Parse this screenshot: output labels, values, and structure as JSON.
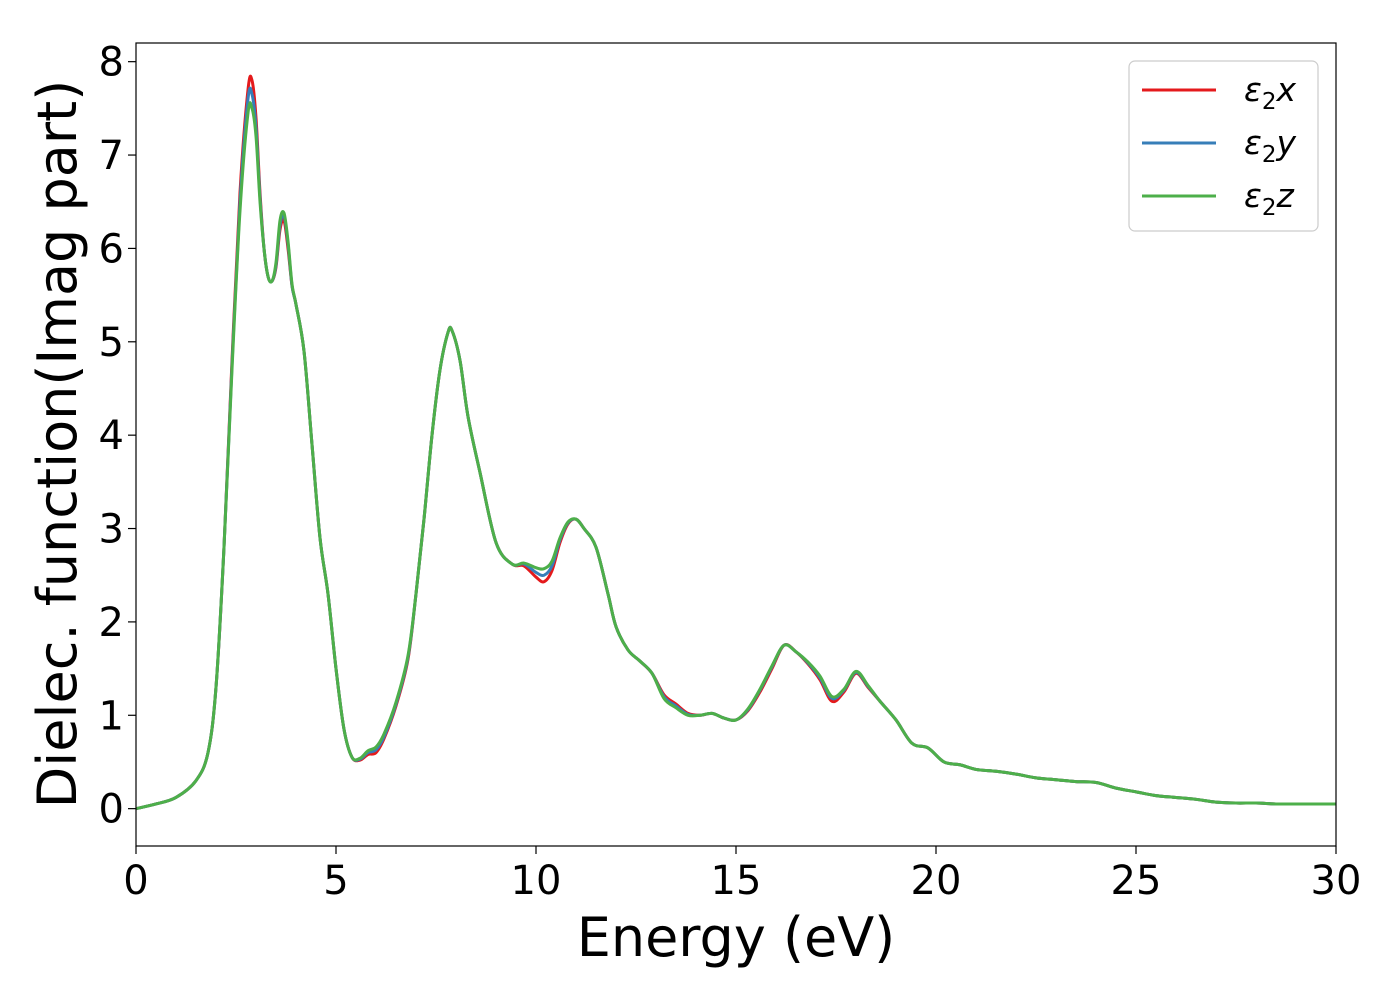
{
  "chart_data": {
    "type": "line",
    "title": "",
    "xlabel": "Energy (eV)",
    "ylabel": "Dielec. function(Imag part)",
    "xlim": [
      0,
      30
    ],
    "ylim": [
      -0.4,
      8.2
    ],
    "xticks": [
      0,
      5,
      10,
      15,
      20,
      25,
      30
    ],
    "yticks": [
      0,
      1,
      2,
      3,
      4,
      5,
      6,
      7,
      8
    ],
    "grid": false,
    "legend_position": "top-right",
    "series": [
      {
        "name": "ε2x",
        "legend": {
          "symbol": "ε",
          "sub": "2",
          "axis": "x"
        },
        "color": "#e41a1c",
        "x": [
          0,
          0.5,
          1.0,
          1.5,
          1.8,
          2.0,
          2.2,
          2.4,
          2.6,
          2.8,
          2.9,
          3.0,
          3.1,
          3.2,
          3.3,
          3.4,
          3.5,
          3.6,
          3.7,
          3.8,
          3.9,
          4.0,
          4.2,
          4.4,
          4.6,
          4.8,
          5.0,
          5.2,
          5.4,
          5.6,
          5.8,
          6.0,
          6.2,
          6.5,
          6.8,
          7.0,
          7.2,
          7.4,
          7.6,
          7.8,
          7.9,
          8.1,
          8.3,
          8.6,
          9.0,
          9.4,
          9.7,
          10.0,
          10.2,
          10.4,
          10.6,
          10.8,
          11.0,
          11.2,
          11.5,
          11.8,
          12.0,
          12.3,
          12.6,
          12.9,
          13.2,
          13.5,
          13.8,
          14.1,
          14.4,
          14.7,
          15.0,
          15.3,
          15.6,
          15.9,
          16.2,
          16.5,
          16.8,
          17.1,
          17.4,
          17.7,
          18.0,
          18.3,
          18.6,
          19.0,
          19.4,
          19.8,
          20.2,
          20.6,
          21.0,
          21.5,
          22.0,
          22.5,
          23.0,
          23.5,
          24.0,
          24.5,
          25.0,
          25.5,
          26.0,
          26.5,
          27.0,
          27.5,
          28.0,
          28.5,
          29.0,
          29.5,
          30.0
        ],
        "y": [
          0.0,
          0.05,
          0.12,
          0.3,
          0.6,
          1.3,
          2.8,
          4.8,
          6.6,
          7.7,
          7.8,
          7.4,
          6.6,
          6.0,
          5.7,
          5.65,
          5.8,
          6.2,
          6.3,
          6.0,
          5.6,
          5.4,
          4.9,
          3.9,
          2.9,
          2.3,
          1.5,
          0.85,
          0.55,
          0.52,
          0.58,
          0.6,
          0.75,
          1.1,
          1.6,
          2.3,
          3.1,
          4.0,
          4.7,
          5.1,
          5.12,
          4.8,
          4.2,
          3.6,
          2.85,
          2.62,
          2.6,
          2.48,
          2.43,
          2.55,
          2.85,
          3.05,
          3.1,
          3.0,
          2.8,
          2.3,
          1.95,
          1.7,
          1.58,
          1.45,
          1.22,
          1.12,
          1.02,
          1.0,
          1.02,
          0.97,
          0.95,
          1.05,
          1.25,
          1.5,
          1.75,
          1.68,
          1.55,
          1.38,
          1.15,
          1.25,
          1.45,
          1.3,
          1.15,
          0.95,
          0.7,
          0.65,
          0.5,
          0.47,
          0.42,
          0.4,
          0.37,
          0.33,
          0.31,
          0.29,
          0.28,
          0.22,
          0.18,
          0.14,
          0.12,
          0.1,
          0.07,
          0.06,
          0.06,
          0.05,
          0.05,
          0.05,
          0.05
        ]
      },
      {
        "name": "ε2y",
        "legend": {
          "symbol": "ε",
          "sub": "2",
          "axis": "y"
        },
        "color": "#377eb8",
        "x": [
          0,
          0.5,
          1.0,
          1.5,
          1.8,
          2.0,
          2.2,
          2.4,
          2.6,
          2.8,
          2.9,
          3.0,
          3.1,
          3.2,
          3.3,
          3.4,
          3.5,
          3.6,
          3.7,
          3.8,
          3.9,
          4.0,
          4.2,
          4.4,
          4.6,
          4.8,
          5.0,
          5.2,
          5.4,
          5.6,
          5.8,
          6.0,
          6.2,
          6.5,
          6.8,
          7.0,
          7.2,
          7.4,
          7.6,
          7.8,
          7.9,
          8.1,
          8.3,
          8.6,
          9.0,
          9.4,
          9.7,
          10.0,
          10.2,
          10.4,
          10.6,
          10.8,
          11.0,
          11.2,
          11.5,
          11.8,
          12.0,
          12.3,
          12.6,
          12.9,
          13.2,
          13.5,
          13.8,
          14.1,
          14.4,
          14.7,
          15.0,
          15.3,
          15.6,
          15.9,
          16.2,
          16.5,
          16.8,
          17.1,
          17.4,
          17.7,
          18.0,
          18.3,
          18.6,
          19.0,
          19.4,
          19.8,
          20.2,
          20.6,
          21.0,
          21.5,
          22.0,
          22.5,
          23.0,
          23.5,
          24.0,
          24.5,
          25.0,
          25.5,
          26.0,
          26.5,
          27.0,
          27.5,
          28.0,
          28.5,
          29.0,
          29.5,
          30.0
        ],
        "y": [
          0.0,
          0.05,
          0.12,
          0.3,
          0.6,
          1.3,
          2.8,
          4.75,
          6.5,
          7.6,
          7.65,
          7.3,
          6.55,
          6.0,
          5.7,
          5.65,
          5.82,
          6.25,
          6.35,
          6.05,
          5.6,
          5.4,
          4.9,
          3.9,
          2.9,
          2.3,
          1.5,
          0.85,
          0.55,
          0.53,
          0.6,
          0.63,
          0.77,
          1.12,
          1.62,
          2.3,
          3.1,
          4.0,
          4.7,
          5.1,
          5.12,
          4.8,
          4.2,
          3.6,
          2.85,
          2.62,
          2.62,
          2.53,
          2.5,
          2.6,
          2.88,
          3.06,
          3.1,
          3.0,
          2.8,
          2.3,
          1.95,
          1.7,
          1.58,
          1.45,
          1.2,
          1.1,
          1.01,
          1.0,
          1.02,
          0.97,
          0.95,
          1.06,
          1.27,
          1.52,
          1.75,
          1.68,
          1.56,
          1.4,
          1.18,
          1.27,
          1.46,
          1.31,
          1.15,
          0.95,
          0.7,
          0.65,
          0.5,
          0.47,
          0.42,
          0.4,
          0.37,
          0.33,
          0.31,
          0.29,
          0.28,
          0.22,
          0.18,
          0.14,
          0.12,
          0.1,
          0.07,
          0.06,
          0.06,
          0.05,
          0.05,
          0.05,
          0.05
        ]
      },
      {
        "name": "ε2z",
        "legend": {
          "symbol": "ε",
          "sub": "2",
          "axis": "z"
        },
        "color": "#4daf4a",
        "x": [
          0,
          0.5,
          1.0,
          1.5,
          1.8,
          2.0,
          2.2,
          2.4,
          2.6,
          2.8,
          2.9,
          3.0,
          3.1,
          3.2,
          3.3,
          3.4,
          3.5,
          3.6,
          3.7,
          3.8,
          3.9,
          4.0,
          4.2,
          4.4,
          4.6,
          4.8,
          5.0,
          5.2,
          5.4,
          5.6,
          5.8,
          6.0,
          6.2,
          6.5,
          6.8,
          7.0,
          7.2,
          7.4,
          7.6,
          7.8,
          7.9,
          8.1,
          8.3,
          8.6,
          9.0,
          9.4,
          9.7,
          10.0,
          10.2,
          10.4,
          10.6,
          10.8,
          11.0,
          11.2,
          11.5,
          11.8,
          12.0,
          12.3,
          12.6,
          12.9,
          13.2,
          13.5,
          13.8,
          14.1,
          14.4,
          14.7,
          15.0,
          15.3,
          15.6,
          15.9,
          16.2,
          16.5,
          16.8,
          17.1,
          17.4,
          17.7,
          18.0,
          18.3,
          18.6,
          19.0,
          19.4,
          19.8,
          20.2,
          20.6,
          21.0,
          21.5,
          22.0,
          22.5,
          23.0,
          23.5,
          24.0,
          24.5,
          25.0,
          25.5,
          26.0,
          26.5,
          27.0,
          27.5,
          28.0,
          28.5,
          29.0,
          29.5,
          30.0
        ],
        "y": [
          0.0,
          0.05,
          0.12,
          0.3,
          0.6,
          1.3,
          2.8,
          4.7,
          6.4,
          7.45,
          7.5,
          7.2,
          6.5,
          6.0,
          5.7,
          5.65,
          5.85,
          6.3,
          6.38,
          6.08,
          5.62,
          5.4,
          4.9,
          3.9,
          2.9,
          2.3,
          1.5,
          0.85,
          0.55,
          0.54,
          0.62,
          0.66,
          0.8,
          1.14,
          1.64,
          2.3,
          3.1,
          4.0,
          4.7,
          5.1,
          5.12,
          4.8,
          4.2,
          3.6,
          2.85,
          2.62,
          2.63,
          2.58,
          2.57,
          2.65,
          2.9,
          3.07,
          3.1,
          3.0,
          2.8,
          2.3,
          1.95,
          1.7,
          1.58,
          1.45,
          1.18,
          1.08,
          1.0,
          1.0,
          1.02,
          0.97,
          0.95,
          1.07,
          1.28,
          1.53,
          1.75,
          1.68,
          1.57,
          1.42,
          1.2,
          1.28,
          1.47,
          1.32,
          1.15,
          0.95,
          0.7,
          0.65,
          0.5,
          0.47,
          0.42,
          0.4,
          0.37,
          0.33,
          0.31,
          0.29,
          0.28,
          0.22,
          0.18,
          0.14,
          0.12,
          0.1,
          0.07,
          0.06,
          0.06,
          0.05,
          0.05,
          0.05,
          0.05
        ]
      }
    ]
  }
}
